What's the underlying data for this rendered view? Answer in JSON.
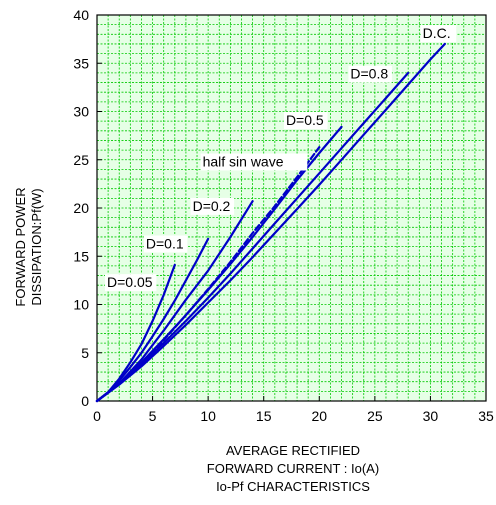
{
  "chart_data": {
    "type": "line",
    "title": "",
    "caption": "Io-Pf CHARACTERISTICS",
    "xlabel_lines": [
      "AVERAGE RECTIFIED",
      "FORWARD CURRENT : Io(A)"
    ],
    "ylabel_lines": [
      "FORWARD POWER",
      "DISSIPATION:Pf(W)"
    ],
    "xlim": [
      0,
      35
    ],
    "ylim": [
      0,
      40
    ],
    "x_ticks": [
      "0",
      "5",
      "10",
      "15",
      "20",
      "25",
      "30",
      "35"
    ],
    "y_ticks": [
      "0",
      "5",
      "10",
      "15",
      "20",
      "25",
      "30",
      "35",
      "40"
    ],
    "grid": true,
    "grid_color": "#00c800",
    "background": "#e6ffe6",
    "line_color": "#0000c8",
    "series": [
      {
        "name": "D=0.05",
        "dashed": false,
        "points": [
          [
            0,
            0
          ],
          [
            1,
            0.9
          ],
          [
            2,
            2.3
          ],
          [
            3,
            4.0
          ],
          [
            4,
            5.9
          ],
          [
            5,
            8.3
          ],
          [
            6,
            11.0
          ],
          [
            7,
            14.1
          ]
        ]
      },
      {
        "name": "D=0.1",
        "dashed": false,
        "points": [
          [
            0,
            0
          ],
          [
            1,
            0.85
          ],
          [
            2,
            2.1
          ],
          [
            3,
            3.5
          ],
          [
            4,
            5.0
          ],
          [
            5,
            6.7
          ],
          [
            6,
            8.5
          ],
          [
            7,
            10.4
          ],
          [
            8,
            12.5
          ],
          [
            9,
            14.6
          ],
          [
            10,
            16.8
          ]
        ]
      },
      {
        "name": "D=0.2",
        "dashed": false,
        "points": [
          [
            0,
            0
          ],
          [
            2,
            1.8
          ],
          [
            4,
            4.3
          ],
          [
            6,
            7.3
          ],
          [
            8,
            10.5
          ],
          [
            10,
            13.5
          ],
          [
            12,
            17.0
          ],
          [
            14,
            20.7
          ]
        ]
      },
      {
        "name": "half sin wave",
        "dashed": true,
        "points": [
          [
            0,
            0
          ],
          [
            2,
            1.75
          ],
          [
            4,
            3.9
          ],
          [
            6,
            6.3
          ],
          [
            8,
            8.9
          ],
          [
            10,
            11.6
          ],
          [
            12,
            14.4
          ],
          [
            14,
            17.4
          ],
          [
            16,
            20.2
          ],
          [
            18,
            23.2
          ],
          [
            20,
            26.3
          ]
        ]
      },
      {
        "name": "D=0.5",
        "dashed": false,
        "points": [
          [
            0,
            0
          ],
          [
            2,
            1.8
          ],
          [
            4,
            4.0
          ],
          [
            6,
            6.4
          ],
          [
            8,
            8.9
          ],
          [
            10,
            11.5
          ],
          [
            12,
            14.2
          ],
          [
            14,
            17.0
          ],
          [
            16,
            19.9
          ],
          [
            18,
            22.9
          ],
          [
            20,
            25.7
          ],
          [
            22,
            28.4
          ]
        ]
      },
      {
        "name": "D=0.8",
        "dashed": false,
        "points": [
          [
            0,
            0
          ],
          [
            2,
            1.75
          ],
          [
            4,
            3.8
          ],
          [
            6,
            6.0
          ],
          [
            8,
            8.3
          ],
          [
            10,
            10.7
          ],
          [
            12,
            13.2
          ],
          [
            14,
            15.8
          ],
          [
            16,
            18.4
          ],
          [
            18,
            21.0
          ],
          [
            20,
            23.6
          ],
          [
            22,
            26.2
          ],
          [
            24,
            28.8
          ],
          [
            26,
            31.4
          ],
          [
            28,
            34.0
          ]
        ]
      },
      {
        "name": "D.C.",
        "dashed": false,
        "points": [
          [
            0,
            0
          ],
          [
            2,
            1.7
          ],
          [
            4,
            3.6
          ],
          [
            6,
            5.7
          ],
          [
            8,
            7.9
          ],
          [
            10,
            10.2
          ],
          [
            12,
            12.5
          ],
          [
            14,
            14.9
          ],
          [
            16,
            17.4
          ],
          [
            18,
            19.9
          ],
          [
            20,
            22.4
          ],
          [
            22,
            25.0
          ],
          [
            24,
            27.6
          ],
          [
            26,
            30.2
          ],
          [
            28,
            32.8
          ],
          [
            30,
            35.4
          ],
          [
            31.3,
            37.0
          ]
        ]
      }
    ],
    "annotations": [
      {
        "text": "D.C.",
        "x": 29.3,
        "y": 37.6
      },
      {
        "text": "D=0.8",
        "x": 22.8,
        "y": 33.4
      },
      {
        "text": "D=0.5",
        "x": 17.0,
        "y": 28.6
      },
      {
        "text": "half sin wave",
        "x": 9.5,
        "y": 24.3
      },
      {
        "text": "D=0.2",
        "x": 8.6,
        "y": 19.7
      },
      {
        "text": "D=0.1",
        "x": 4.4,
        "y": 15.8
      },
      {
        "text": "D=0.05",
        "x": 0.9,
        "y": 11.8
      }
    ]
  }
}
